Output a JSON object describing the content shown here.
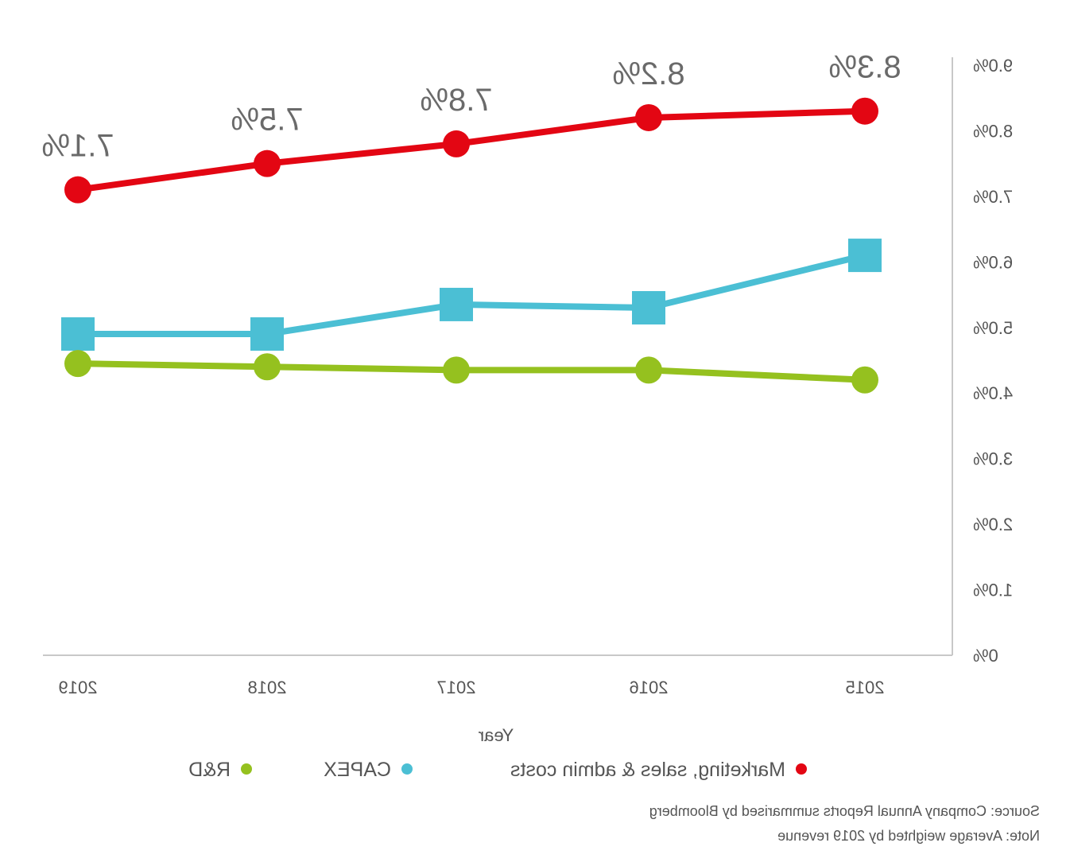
{
  "chart_data": {
    "type": "line",
    "categories": [
      "2015",
      "2016",
      "2017",
      "2018",
      "2019"
    ],
    "xlabel": "Year",
    "ylabel": "",
    "ylim": [
      0,
      9
    ],
    "y_ticks": [
      "0%",
      "1.0%",
      "2.0%",
      "3.0%",
      "4.0%",
      "5.0%",
      "6.0%",
      "7.0%",
      "8.0%",
      "9.0%"
    ],
    "grid": false,
    "legend_position": "bottom",
    "series": [
      {
        "name": "Marketing, sales & admin costs",
        "values": [
          8.3,
          8.2,
          7.8,
          7.5,
          7.1
        ],
        "data_labels": [
          "8.3%",
          "8.2%",
          "7.8%",
          "7.5%",
          "7.1%"
        ],
        "color": "#e30613",
        "marker": "circle"
      },
      {
        "name": "CAPEX",
        "values": [
          6.1,
          5.3,
          5.35,
          4.9,
          4.9
        ],
        "color": "#4bbfd4",
        "marker": "square"
      },
      {
        "name": "R&D",
        "values": [
          4.2,
          4.35,
          4.35,
          4.4,
          4.45
        ],
        "color": "#95c11f",
        "marker": "circle"
      }
    ]
  },
  "footnotes": {
    "source": "Source: Company Annual Reports summarised by Bloomberg",
    "note": "Note: Average weighted by 2019 revenue"
  }
}
